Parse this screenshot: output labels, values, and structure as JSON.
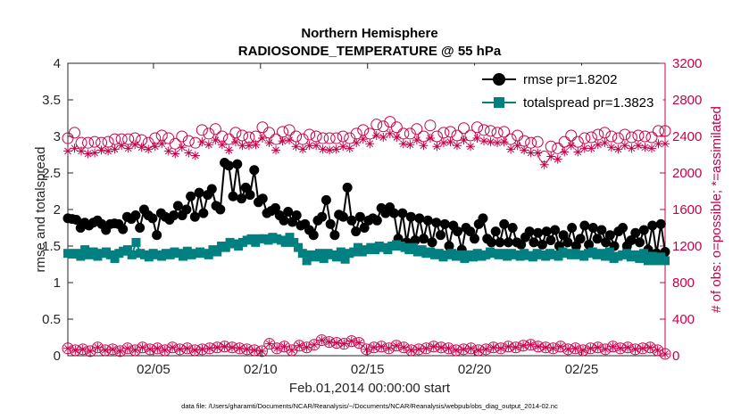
{
  "chart_data": {
    "type": "line",
    "title": "Northern Hemisphere",
    "subtitle": "RADIOSONDE_TEMPERATURE @ 55 hPa",
    "xlabel": "Feb.01,2014 00:00:00 start",
    "ylabel": "rmse and totalspread",
    "ylabel_right": "# of obs: o=possible; *=assimilated",
    "footnote": "data file: /Users/gharamti/Documents/NCAR/Reanalysis/~/Documents/NCAR/Reanalysis/webpub/obs_diag_output_2014-02.nc",
    "xlim": [
      1,
      28.9
    ],
    "ylim": [
      0,
      4
    ],
    "ylim_right": [
      0,
      3200
    ],
    "x_ticks": [
      5,
      10,
      15,
      20,
      25
    ],
    "x_tick_labels": [
      "02/05",
      "02/10",
      "02/15",
      "02/20",
      "02/25"
    ],
    "y_ticks": [
      0,
      0.5,
      1,
      1.5,
      2,
      2.5,
      3,
      3.5,
      4
    ],
    "y_tick_labels": [
      "0",
      "0.5",
      "1",
      "1.5",
      "2",
      "2.5",
      "3",
      "3.5",
      "4"
    ],
    "y_right_ticks": [
      0,
      400,
      800,
      1200,
      1600,
      2000,
      2400,
      2800,
      3200
    ],
    "y_right_tick_labels": [
      "0",
      "400",
      "800",
      "1200",
      "1600",
      "2000",
      "2400",
      "2800",
      "3200"
    ],
    "legend_position": "top-right",
    "colors": {
      "rmse": "#000000",
      "spread": "#008080",
      "obs": "#c8004b",
      "axis": "#262626"
    },
    "series": [
      {
        "name": "rmse",
        "legend": "rmse pr=1.8202",
        "axis": "left",
        "marker": "filled-circle",
        "values": [
          1.88,
          1.87,
          1.86,
          1.75,
          1.82,
          1.78,
          1.82,
          1.85,
          1.8,
          1.72,
          1.8,
          1.81,
          1.8,
          1.73,
          1.9,
          1.87,
          1.92,
          1.75,
          2.0,
          1.92,
          1.88,
          1.65,
          1.95,
          1.9,
          1.86,
          1.92,
          2.05,
          1.92,
          2.0,
          2.18,
          1.9,
          2.23,
          1.95,
          2.2,
          2.28,
          2.05,
          2.0,
          2.64,
          2.6,
          2.18,
          2.62,
          2.15,
          2.3,
          2.2,
          2.54,
          2.1,
          2.15,
          1.95,
          1.98,
          2.02,
          1.92,
          1.85,
          1.97,
          1.83,
          1.92,
          1.78,
          1.8,
          1.72,
          1.65,
          1.85,
          1.9,
          2.13,
          1.8,
          1.65,
          1.93,
          1.9,
          2.3,
          1.85,
          1.7,
          1.9,
          1.75,
          1.85,
          1.88,
          1.85,
          2.02,
          1.95,
          2.03,
          1.95,
          1.6,
          1.95,
          1.55,
          1.9,
          1.58,
          1.88,
          1.6,
          1.85,
          1.55,
          1.82,
          1.65,
          1.8,
          1.5,
          1.78,
          1.7,
          1.45,
          1.75,
          1.7,
          1.6,
          1.8,
          1.88,
          1.6,
          1.55,
          1.7,
          1.55,
          1.8,
          1.55,
          1.75,
          1.55,
          1.52,
          1.62,
          1.7,
          1.55,
          1.68,
          1.52,
          1.7,
          1.58,
          1.72,
          1.5,
          1.65,
          1.55,
          1.75,
          1.5,
          1.6,
          1.78,
          1.52,
          1.75,
          1.6,
          1.72,
          1.55,
          1.65,
          1.5,
          1.7,
          1.75,
          1.5,
          1.58,
          1.68,
          1.55,
          1.72,
          1.45,
          1.78,
          1.4,
          1.8,
          1.42
        ]
      },
      {
        "name": "totalspread",
        "legend": "totalspread pr=1.3823",
        "axis": "left",
        "marker": "filled-square",
        "values": [
          1.4,
          1.39,
          1.4,
          1.36,
          1.45,
          1.38,
          1.42,
          1.36,
          1.4,
          1.42,
          1.38,
          1.33,
          1.4,
          1.43,
          1.45,
          1.38,
          1.55,
          1.4,
          1.38,
          1.35,
          1.4,
          1.38,
          1.36,
          1.4,
          1.38,
          1.42,
          1.4,
          1.36,
          1.43,
          1.38,
          1.4,
          1.42,
          1.4,
          1.38,
          1.45,
          1.42,
          1.5,
          1.48,
          1.55,
          1.53,
          1.5,
          1.55,
          1.58,
          1.6,
          1.55,
          1.6,
          1.6,
          1.58,
          1.62,
          1.6,
          1.58,
          1.55,
          1.62,
          1.55,
          1.48,
          1.4,
          1.3,
          1.38,
          1.35,
          1.4,
          1.33,
          1.4,
          1.38,
          1.35,
          1.42,
          1.32,
          1.4,
          1.42,
          1.48,
          1.42,
          1.45,
          1.48,
          1.45,
          1.5,
          1.48,
          1.45,
          1.5,
          1.52,
          1.5,
          1.48,
          1.45,
          1.48,
          1.42,
          1.45,
          1.4,
          1.42,
          1.38,
          1.4,
          1.35,
          1.38,
          1.4,
          1.36,
          1.38,
          1.33,
          1.38,
          1.35,
          1.4,
          1.36,
          1.38,
          1.42,
          1.4,
          1.38,
          1.4,
          1.36,
          1.4,
          1.38,
          1.36,
          1.4,
          1.37,
          1.35,
          1.4,
          1.38,
          1.36,
          1.4,
          1.38,
          1.36,
          1.42,
          1.4,
          1.38,
          1.4,
          1.38,
          1.36,
          1.4,
          1.42,
          1.38,
          1.4,
          1.36,
          1.42,
          1.33,
          1.36,
          1.38,
          1.4,
          1.35,
          1.38,
          1.33,
          1.4,
          1.3,
          1.36,
          1.3,
          1.35,
          1.3
        ]
      },
      {
        "name": "obs_possible",
        "axis": "right",
        "marker": "open-circle",
        "values": [
          2380,
          2440,
          2330,
          2330,
          2340,
          2330,
          2340,
          2370,
          2370,
          2370,
          2380,
          2360,
          2330,
          2380,
          2410,
          2380,
          2320,
          2400,
          2350,
          2330,
          2470,
          2430,
          2480,
          2400,
          2370,
          2440,
          2410,
          2390,
          2400,
          2500,
          2440,
          2370,
          2450,
          2470,
          2400,
          2370,
          2420,
          2400,
          2380,
          2380,
          2380,
          2400,
          2380,
          2430,
          2470,
          2430,
          2530,
          2510,
          2560,
          2500,
          2430,
          2430,
          2480,
          2400,
          2520,
          2400,
          2440,
          2450,
          2410,
          2490,
          2410,
          2500,
          2470,
          2460,
          2440,
          2450,
          2370,
          2410,
          2350,
          2330,
          2340,
          2180,
          2290,
          2270,
          2340,
          2410,
          2340,
          2380,
          2390,
          2420,
          2440,
          2400,
          2380,
          2420,
          2390,
          2410,
          2400,
          2390,
          2460,
          2460
        ]
      },
      {
        "name": "obs_assimilated",
        "axis": "right",
        "marker": "asterisk",
        "values": [
          2240,
          2270,
          2240,
          2210,
          2220,
          2250,
          2240,
          2260,
          2300,
          2270,
          2310,
          2280,
          2260,
          2290,
          2320,
          2240,
          2210,
          2280,
          2220,
          2190,
          2340,
          2310,
          2360,
          2310,
          2250,
          2340,
          2300,
          2300,
          2310,
          2380,
          2330,
          2250,
          2350,
          2360,
          2290,
          2260,
          2300,
          2300,
          2260,
          2250,
          2260,
          2290,
          2270,
          2330,
          2370,
          2320,
          2410,
          2390,
          2430,
          2390,
          2320,
          2310,
          2360,
          2300,
          2380,
          2290,
          2330,
          2340,
          2300,
          2360,
          2290,
          2380,
          2350,
          2340,
          2330,
          2340,
          2260,
          2300,
          2250,
          2220,
          2220,
          2090,
          2180,
          2150,
          2230,
          2300,
          2230,
          2270,
          2270,
          2310,
          2330,
          2280,
          2260,
          2300,
          2270,
          2300,
          2280,
          2270,
          2320,
          2320
        ]
      },
      {
        "name": "obs_low_possible",
        "axis": "right",
        "marker": "open-circle",
        "values": [
          80,
          60,
          70,
          50,
          90,
          60,
          70,
          50,
          80,
          60,
          90,
          70,
          80,
          60,
          90,
          70,
          80,
          60,
          70,
          80,
          90,
          100,
          90,
          80,
          70,
          60,
          50,
          130,
          80,
          100,
          60,
          110,
          90,
          120,
          170,
          150,
          140,
          130,
          160,
          140,
          70,
          90,
          100,
          80,
          110,
          90,
          60,
          70,
          80,
          100,
          90,
          80,
          60,
          70,
          80,
          60,
          70,
          90,
          80,
          100,
          90,
          110,
          120,
          100,
          90,
          80,
          100,
          70,
          80,
          60,
          80,
          90,
          70,
          100,
          80,
          90,
          70,
          80,
          90,
          60,
          20
        ]
      },
      {
        "name": "obs_low_assimilated",
        "axis": "right",
        "marker": "asterisk",
        "values": [
          80,
          60,
          70,
          50,
          90,
          60,
          70,
          50,
          80,
          60,
          90,
          70,
          80,
          60,
          90,
          70,
          80,
          60,
          70,
          80,
          90,
          100,
          90,
          80,
          70,
          60,
          50,
          130,
          80,
          100,
          60,
          110,
          90,
          120,
          170,
          150,
          140,
          130,
          160,
          140,
          70,
          90,
          100,
          80,
          110,
          90,
          60,
          70,
          80,
          100,
          90,
          80,
          60,
          70,
          80,
          60,
          70,
          90,
          80,
          100,
          90,
          110,
          120,
          100,
          90,
          80,
          100,
          70,
          80,
          60,
          80,
          90,
          70,
          100,
          80,
          90,
          70,
          80,
          90,
          60,
          20
        ]
      }
    ]
  }
}
